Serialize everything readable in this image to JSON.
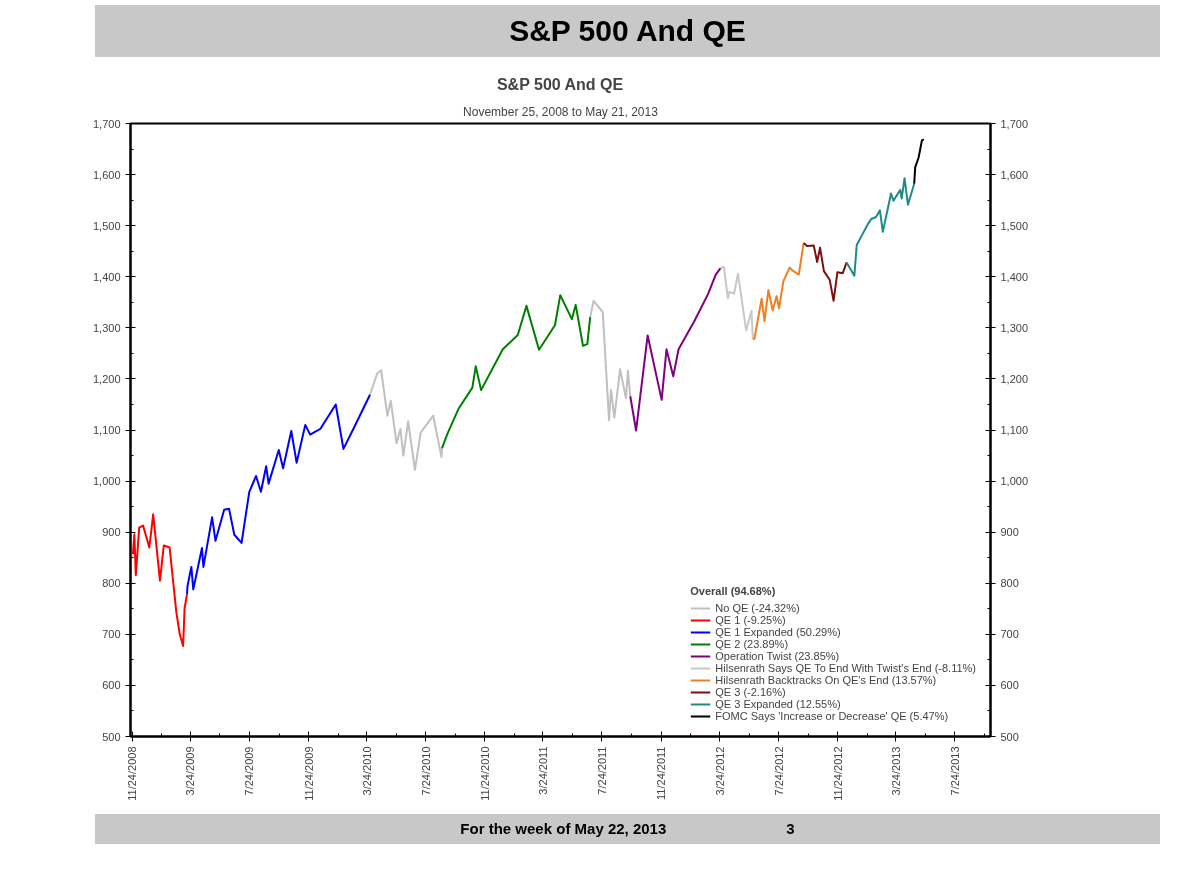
{
  "chart_data": {
    "type": "line",
    "title": "S&P 500 And QE",
    "subtitle": "November 25, 2008 to May 21, 2013",
    "annotations": [
      "S&P 500 And QE",
      "For the week of May 22, 2013",
      "3"
    ],
    "legend_title": "Overall (94.68%)",
    "legend": "bottom right",
    "marker": "none",
    "line_style": "solid",
    "xlim": [
      "2008-11-20",
      "2013-10-06"
    ],
    "xticks": [
      {
        "value": "2008-11-24",
        "label": "11/24/2008"
      },
      {
        "value": "2009-01-24",
        "label": null
      },
      {
        "value": "2009-03-24",
        "label": "3/24/2009"
      },
      {
        "value": "2009-05-24",
        "label": null
      },
      {
        "value": "2009-07-24",
        "label": "7/24/2009"
      },
      {
        "value": "2009-09-24",
        "label": null
      },
      {
        "value": "2009-11-24",
        "label": "11/24/2009"
      },
      {
        "value": "2010-01-24",
        "label": null
      },
      {
        "value": "2010-03-24",
        "label": "3/24/2010"
      },
      {
        "value": "2010-05-24",
        "label": null
      },
      {
        "value": "2010-07-24",
        "label": "7/24/2010"
      },
      {
        "value": "2010-09-24",
        "label": null
      },
      {
        "value": "2010-11-24",
        "label": "11/24/2010"
      },
      {
        "value": "2011-01-24",
        "label": null
      },
      {
        "value": "2011-03-24",
        "label": "3/24/2011"
      },
      {
        "value": "2011-05-24",
        "label": null
      },
      {
        "value": "2011-07-24",
        "label": "7/24/2011"
      },
      {
        "value": "2011-09-24",
        "label": null
      },
      {
        "value": "2011-11-24",
        "label": "11/24/2011"
      },
      {
        "value": "2012-01-24",
        "label": null
      },
      {
        "value": "2012-03-24",
        "label": "3/24/2012"
      },
      {
        "value": "2012-05-24",
        "label": null
      },
      {
        "value": "2012-07-24",
        "label": "7/24/2012"
      },
      {
        "value": "2012-09-24",
        "label": null
      },
      {
        "value": "2012-11-24",
        "label": "11/24/2012"
      },
      {
        "value": "2013-01-24",
        "label": null
      },
      {
        "value": "2013-03-24",
        "label": "3/24/2013"
      },
      {
        "value": "2013-05-24",
        "label": null
      },
      {
        "value": "2013-07-24",
        "label": "7/24/2013"
      },
      {
        "value": "2013-09-24",
        "label": null
      }
    ],
    "ylim": [
      500,
      1700
    ],
    "yticks": [
      500,
      {
        "value": 550,
        "label": null
      },
      600,
      {
        "value": 650,
        "label": null
      },
      700,
      {
        "value": 750,
        "label": null
      },
      800,
      {
        "value": 850,
        "label": null
      },
      900,
      {
        "value": 950,
        "label": null
      },
      {
        "value": 1000,
        "label": "1,000"
      },
      {
        "value": 1050,
        "label": null
      },
      {
        "value": 1100,
        "label": "1,100"
      },
      {
        "value": 1150,
        "label": null
      },
      {
        "value": 1200,
        "label": "1,200"
      },
      {
        "value": 1250,
        "label": null
      },
      {
        "value": 1300,
        "label": "1,300"
      },
      {
        "value": 1350,
        "label": null
      },
      {
        "value": 1400,
        "label": "1,400"
      },
      {
        "value": 1450,
        "label": null
      },
      {
        "value": 1500,
        "label": "1,500"
      },
      {
        "value": 1550,
        "label": null
      },
      {
        "value": 1600,
        "label": "1,600"
      },
      {
        "value": 1650,
        "label": null
      },
      {
        "value": 1700,
        "label": "1,700"
      }
    ],
    "y2lim": [
      500,
      1700
    ],
    "y2ticks": [
      500,
      {
        "value": 550,
        "label": null
      },
      600,
      {
        "value": 650,
        "label": null
      },
      700,
      {
        "value": 750,
        "label": null
      },
      800,
      {
        "value": 850,
        "label": null
      },
      900,
      {
        "value": 950,
        "label": null
      },
      {
        "value": 1000,
        "label": "1,000"
      },
      {
        "value": 1050,
        "label": null
      },
      {
        "value": 1100,
        "label": "1,100"
      },
      {
        "value": 1150,
        "label": null
      },
      {
        "value": 1200,
        "label": "1,200"
      },
      {
        "value": 1250,
        "label": null
      },
      {
        "value": 1300,
        "label": "1,300"
      },
      {
        "value": 1350,
        "label": null
      },
      {
        "value": 1400,
        "label": "1,400"
      },
      {
        "value": 1450,
        "label": null
      },
      {
        "value": 1500,
        "label": "1,500"
      },
      {
        "value": 1550,
        "label": null
      },
      {
        "value": 1600,
        "label": "1,600"
      },
      {
        "value": 1650,
        "label": null
      },
      {
        "value": 1700,
        "label": "1,700"
      }
    ],
    "series": [
      {
        "name": "No QE (-24.32%)",
        "color": "#c0c0c0",
        "x": [
          "2010-03-31",
          "2010-04-15",
          "2010-04-23",
          "2010-05-06",
          "2010-05-13",
          "2010-05-25",
          "2010-06-02",
          "2010-06-08",
          "2010-06-18",
          "2010-07-02",
          "2010-07-14",
          "2010-08-09",
          "2010-08-26",
          "2010-08-27",
          "2010-10-01",
          "2011-06-30",
          "2011-07-07",
          "2011-07-26",
          "2011-08-08",
          "2011-08-12",
          "2011-08-19",
          "2011-08-31",
          "2011-09-12",
          "2011-09-16",
          "2011-09-21"
        ],
        "values": [
          1169,
          1211,
          1217,
          1128,
          1157,
          1074,
          1102,
          1050,
          1117,
          1022,
          1095,
          1128,
          1047,
          1064,
          null,
          1321,
          1353,
          1331,
          1119,
          1179,
          1124,
          1219,
          1162,
          1216,
          1166
        ]
      },
      {
        "name": "QE 1 (-9.25%)",
        "color": "#ff0000",
        "x": [
          "2008-11-25",
          "2008-11-28",
          "2008-12-01",
          "2008-12-08",
          "2008-12-16",
          "2008-12-29",
          "2009-01-06",
          "2009-01-20",
          "2009-01-28",
          "2009-02-09",
          "2009-02-23",
          "2009-03-02",
          "2009-03-09",
          "2009-03-12",
          "2009-03-17"
        ],
        "values": [
          857,
          896,
          816,
          909,
          913,
          870,
          935,
          805,
          874,
          870,
          743,
          700,
          677,
          751,
          778
        ]
      },
      {
        "name": "QE 1 Expanded (50.29%)",
        "color": "#0000ff",
        "x": [
          "2009-03-17",
          "2009-03-18",
          "2009-03-26",
          "2009-03-30",
          "2009-04-17",
          "2009-04-20",
          "2009-05-08",
          "2009-05-15",
          "2009-06-02",
          "2009-06-12",
          "2009-06-23",
          "2009-07-08",
          "2009-07-24",
          "2009-08-07",
          "2009-08-17",
          "2009-08-28",
          "2009-09-02",
          "2009-09-23",
          "2009-10-02",
          "2009-10-19",
          "2009-10-30",
          "2009-11-17",
          "2009-11-27",
          "2009-12-18",
          "2010-01-19",
          "2010-02-04",
          "2010-02-25",
          "2010-03-31"
        ],
        "values": [
          778,
          794,
          832,
          788,
          869,
          832,
          929,
          883,
          944,
          946,
          895,
          879,
          979,
          1010,
          979,
          1029,
          995,
          1061,
          1025,
          1098,
          1036,
          1110,
          1091,
          1102,
          1150,
          1063,
          1103,
          1169
        ]
      },
      {
        "name": "QE 2 (23.89%)",
        "color": "#008000",
        "x": [
          "2010-08-27",
          "2010-09-07",
          "2010-09-30",
          "2010-10-29",
          "2010-11-05",
          "2010-11-16",
          "2010-12-31",
          "2011-01-31",
          "2011-02-18",
          "2011-03-16",
          "2011-04-18",
          "2011-04-29",
          "2011-05-23",
          "2011-05-31",
          "2011-06-15",
          "2011-06-24",
          "2011-06-30"
        ],
        "values": [
          1064,
          1092,
          1141,
          1183,
          1225,
          1178,
          1258,
          1286,
          1343,
          1257,
          1305,
          1364,
          1317,
          1345,
          1265,
          1268,
          1321
        ]
      },
      {
        "name": "Operation Twist (23.85%)",
        "color": "#800080",
        "x": [
          "2011-09-21",
          "2011-10-03",
          "2011-10-27",
          "2011-11-25",
          "2011-12-05",
          "2011-12-19",
          "2011-12-30",
          "2012-01-31",
          "2012-02-29",
          "2012-03-16",
          "2012-03-26"
        ],
        "values": [
          1166,
          1099,
          1285,
          1159,
          1258,
          1205,
          1258,
          1312,
          1366,
          1404,
          1417
        ]
      },
      {
        "name": "Hilsenrath Says QE To End With Twist's End (-8.11%)",
        "color": "#c8c8c8",
        "x": [
          "2012-03-26",
          "2012-04-02",
          "2012-04-10",
          "2012-04-13",
          "2012-04-23",
          "2012-05-01",
          "2012-05-18",
          "2012-05-29",
          "2012-06-01"
        ],
        "values": [
          1417,
          1419,
          1358,
          1370,
          1367,
          1406,
          1295,
          1333,
          1278
        ]
      },
      {
        "name": "Hilsenrath Backtracks On QE's End (13.57%)",
        "color": "#f07f20",
        "x": [
          "2012-06-01",
          "2012-06-04",
          "2012-06-19",
          "2012-06-25",
          "2012-07-03",
          "2012-07-12",
          "2012-07-20",
          "2012-07-25",
          "2012-08-03",
          "2012-08-16",
          "2012-08-21",
          "2012-09-04",
          "2012-09-14"
        ],
        "values": [
          1278,
          1278,
          1357,
          1313,
          1374,
          1334,
          1362,
          1338,
          1391,
          1418,
          1413,
          1404,
          1466
        ]
      },
      {
        "name": "QE 3 (-2.16%)",
        "color": "#7b1010",
        "x": [
          "2012-09-14",
          "2012-09-21",
          "2012-10-05",
          "2012-10-12",
          "2012-10-18",
          "2012-10-26",
          "2012-11-07",
          "2012-11-15",
          "2012-11-23",
          "2012-12-04",
          "2012-12-12"
        ],
        "values": [
          1466,
          1460,
          1461,
          1429,
          1457,
          1411,
          1394,
          1353,
          1409,
          1407,
          1428
        ]
      },
      {
        "name": "QE 3 Expanded (12.55%)",
        "color": "#1f8a8a",
        "x": [
          "2012-12-12",
          "2012-12-28",
          "2013-01-02",
          "2013-01-25",
          "2013-02-01",
          "2013-02-11",
          "2013-02-19",
          "2013-02-25",
          "2013-03-14",
          "2013-03-19",
          "2013-04-02",
          "2013-04-05",
          "2013-04-11",
          "2013-04-18",
          "2013-05-01"
        ],
        "values": [
          1428,
          1402,
          1462,
          1503,
          1513,
          1517,
          1530,
          1488,
          1563,
          1549,
          1570,
          1553,
          1593,
          1541,
          1582
        ]
      },
      {
        "name": "FOMC Says 'Increase or Decrease' QE (5.47%)",
        "color": "#000000",
        "x": [
          "2013-05-01",
          "2013-05-03",
          "2013-05-10",
          "2013-05-17",
          "2013-05-21"
        ],
        "values": [
          1582,
          1614,
          1633,
          1667,
          1669
        ]
      }
    ]
  }
}
